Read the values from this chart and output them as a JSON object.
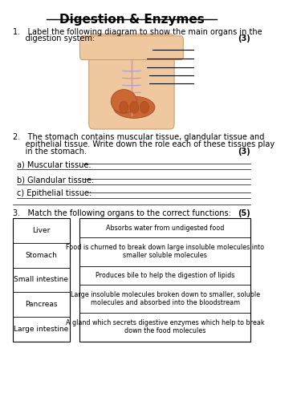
{
  "title": "Digestion & Enzymes",
  "background_color": "#ffffff",
  "q1_line1": "1.   Label the following diagram to show the main organs in the",
  "q1_line2": "     digestion system:",
  "q1_marks": "(3)",
  "q2_line1": "2.   The stomach contains muscular tissue, glandular tissue and",
  "q2_line2": "     epithelial tissue. Write down the role each of these tissues play",
  "q2_line3": "     in the stomach.",
  "q2_marks": "(3)",
  "q2_parts": [
    "a) Muscular tissue: ",
    "b) Glandular tissue: ",
    "c) Epithelial tissue: "
  ],
  "q3_text": "3.   Match the following organs to the correct functions:",
  "q3_marks": "(5)",
  "organs": [
    "Liver",
    "Stomach",
    "Small intestine",
    "Pancreas",
    "Large intestine"
  ],
  "functions": [
    "Absorbs water from undigested food",
    "Food is churned to break down large insoluble molecules into\nsmaller soluble molecules",
    "Produces bile to help the digestion of lipids",
    "Large insoluble molecules broken down to smaller, soluble\nmolecules and absorbed into the bloodstream",
    "A gland which secrets digestive enzymes which help to break\ndown the food molecules"
  ],
  "body_color": "#f0c8a0",
  "body_edge_color": "#c8a070",
  "rib_color": "#b0a0cc",
  "organ_color": "#cc6633",
  "organ_edge": "#994422"
}
